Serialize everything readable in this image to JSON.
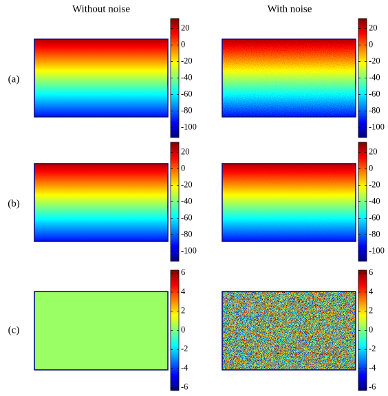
{
  "column_titles": [
    "Without noise",
    "With noise"
  ],
  "row_labels": [
    "(a)",
    "(b)",
    "(c)"
  ],
  "chart_data": [
    {
      "type": "heatmap",
      "values": [
        26,
        -92
      ],
      "noise_level": 0,
      "clim": [
        -112,
        32
      ],
      "colorbar_ticks": [
        20,
        0,
        -20,
        -40,
        -60,
        -80,
        -100
      ]
    },
    {
      "type": "heatmap",
      "values": [
        26,
        -92
      ],
      "noise_level": 2,
      "clim": [
        -112,
        32
      ],
      "colorbar_ticks": [
        20,
        0,
        -20,
        -40,
        -60,
        -80,
        -100
      ]
    },
    {
      "type": "heatmap",
      "values": [
        26,
        -92
      ],
      "noise_level": 0,
      "clim": [
        -112,
        32
      ],
      "colorbar_ticks": [
        20,
        0,
        -20,
        -40,
        -60,
        -80,
        -100
      ]
    },
    {
      "type": "heatmap",
      "values": [
        26,
        -92
      ],
      "noise_level": 0.5,
      "clim": [
        -112,
        32
      ],
      "colorbar_ticks": [
        20,
        0,
        -20,
        -40,
        -60,
        -80,
        -100
      ]
    },
    {
      "type": "heatmap",
      "values": [
        0.3,
        0.3
      ],
      "noise_level": 0,
      "clim": [
        -6.3,
        6.3
      ],
      "colorbar_ticks": [
        6,
        4,
        2,
        0,
        -2,
        -4,
        -6
      ]
    },
    {
      "type": "heatmap",
      "values": [
        0.3,
        0.3
      ],
      "noise_level": 3,
      "clim": [
        -6.3,
        6.3
      ],
      "colorbar_ticks": [
        6,
        4,
        2,
        0,
        -2,
        -4,
        -6
      ]
    }
  ]
}
